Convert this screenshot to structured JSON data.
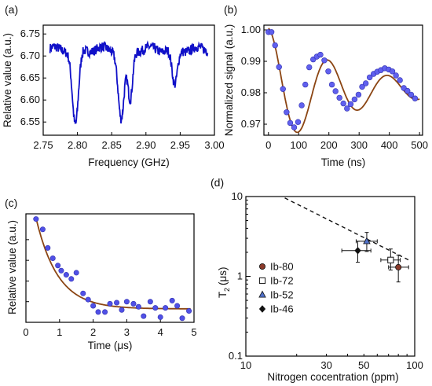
{
  "chart_data": [
    {
      "panel": "(a)",
      "type": "line",
      "xlabel": "Frequency (GHz)",
      "ylabel": "Relative value (a.u.)",
      "xlim": [
        2.75,
        3.0
      ],
      "ylim": [
        6.52,
        6.77
      ],
      "xticks": [
        "2.75",
        "2.80",
        "2.85",
        "2.90",
        "2.95",
        "3.00"
      ],
      "yticks": [
        "6.55",
        "6.60",
        "6.65",
        "6.70",
        "6.75"
      ],
      "baseline": 6.715,
      "dips": [
        {
          "center": 2.797,
          "depth": 6.54,
          "width": 0.0045
        },
        {
          "center": 2.864,
          "depth": 6.555,
          "width": 0.0045
        },
        {
          "center": 2.877,
          "depth": 6.6,
          "width": 0.0035
        },
        {
          "center": 2.942,
          "depth": 6.63,
          "width": 0.004
        }
      ],
      "x_range": [
        2.76,
        2.99
      ],
      "line_color": "#1010c8"
    },
    {
      "panel": "(b)",
      "type": "scatter",
      "xlabel": "Time (ns)",
      "ylabel": "Normalized signal (a.u.)",
      "xlim": [
        -15,
        510
      ],
      "ylim": [
        0.9665,
        1.0015
      ],
      "xticks": [
        0,
        100,
        200,
        300,
        400,
        500
      ],
      "yticks": [
        "0.97",
        "0.98",
        "0.99",
        "1.00"
      ],
      "fit": {
        "offset": 0.981,
        "amplitude": 0.0195,
        "decay_ns": 270,
        "period_ns": 198
      },
      "x": [
        0,
        10,
        22,
        35,
        48,
        60,
        72,
        85,
        98,
        110,
        122,
        135,
        148,
        160,
        172,
        185,
        198,
        210,
        222,
        235,
        248,
        260,
        272,
        285,
        298,
        310,
        322,
        335,
        348,
        360,
        372,
        385,
        398,
        410,
        422,
        435,
        448,
        460,
        472,
        485
      ],
      "y": [
        0.9993,
        0.9993,
        0.9951,
        0.9882,
        0.9812,
        0.9738,
        0.9704,
        0.969,
        0.9707,
        0.976,
        0.9826,
        0.9881,
        0.9906,
        0.9915,
        0.9921,
        0.9903,
        0.9868,
        0.9826,
        0.9805,
        0.9784,
        0.9766,
        0.975,
        0.9764,
        0.9779,
        0.9794,
        0.9819,
        0.983,
        0.9849,
        0.986,
        0.9867,
        0.9872,
        0.9878,
        0.9874,
        0.9868,
        0.9855,
        0.984,
        0.9815,
        0.9806,
        0.9794,
        0.9782
      ],
      "marker_color": "#6060ee",
      "fit_color": "#8b4513"
    },
    {
      "panel": "(c)",
      "type": "scatter",
      "xlabel": "Time (μs)",
      "ylabel": "Relative value (a.u.)",
      "xlim": [
        0,
        5
      ],
      "ylim": [
        0,
        1.05
      ],
      "xticks": [
        "0",
        "1",
        "2",
        "3",
        "4",
        "5"
      ],
      "fit": {
        "offset": 0.13,
        "amplitude": 0.88,
        "tau_us": 0.65,
        "t0_us": 0.3
      },
      "x": [
        0.3,
        0.5,
        0.65,
        0.8,
        0.95,
        1.05,
        1.2,
        1.35,
        1.5,
        1.7,
        1.85,
        2.0,
        2.15,
        2.35,
        2.5,
        2.7,
        2.85,
        3.0,
        3.2,
        3.35,
        3.5,
        3.7,
        3.85,
        4.0,
        4.15,
        4.35,
        4.5,
        4.65,
        4.85
      ],
      "y": [
        1.0,
        0.9,
        0.72,
        0.62,
        0.55,
        0.5,
        0.46,
        0.42,
        0.48,
        0.28,
        0.22,
        0.16,
        0.1,
        0.1,
        0.18,
        0.19,
        0.12,
        0.2,
        0.18,
        0.15,
        0.06,
        0.2,
        0.14,
        0.05,
        0.14,
        0.21,
        0.16,
        0.04,
        0.11
      ],
      "marker_color": "#5050e6",
      "fit_color": "#8b4513"
    },
    {
      "panel": "(d)",
      "type": "scatter",
      "scale": "log-log",
      "xlabel": "Nitrogen cocentration (ppm)",
      "ylabel_main": "T",
      "ylabel_sub": "2",
      "ylabel_unit": "(μs)",
      "xlim": [
        10,
        100
      ],
      "ylim": [
        0.1,
        10
      ],
      "xticks": [
        {
          "v": 10,
          "label": "10"
        },
        {
          "v": 30,
          "label": "30"
        },
        {
          "v": 50,
          "label": "50"
        },
        {
          "v": 100,
          "label": "100"
        }
      ],
      "yticks": [
        {
          "v": 0.1,
          "label": "0.1"
        },
        {
          "v": 1,
          "label": "1"
        },
        {
          "v": 10,
          "label": "10"
        }
      ],
      "trend_line": {
        "x": [
          17,
          95
        ],
        "y": [
          9.6,
          1.55
        ],
        "style": "dashed"
      },
      "points": [
        {
          "name": "Ib-80",
          "x": 80,
          "y": 1.3,
          "xerr": [
            70,
            92
          ],
          "yerr": [
            0.85,
            1.85
          ],
          "marker": "circle",
          "color": "#8b3a2a"
        },
        {
          "name": "Ib-72",
          "x": 72,
          "y": 1.6,
          "xerr": [
            63,
            82
          ],
          "yerr": [
            1.2,
            2.2
          ],
          "marker": "square-open",
          "color": "#ffffff"
        },
        {
          "name": "Ib-52",
          "x": 52,
          "y": 2.75,
          "xerr": [
            45,
            60
          ],
          "yerr": [
            2.05,
            3.55
          ],
          "marker": "triangle",
          "color": "#5070c8"
        },
        {
          "name": "Ib-46",
          "x": 46,
          "y": 2.1,
          "xerr": [
            37,
            55
          ],
          "yerr": [
            1.5,
            2.75
          ],
          "marker": "diamond",
          "color": "#111111"
        }
      ]
    }
  ]
}
